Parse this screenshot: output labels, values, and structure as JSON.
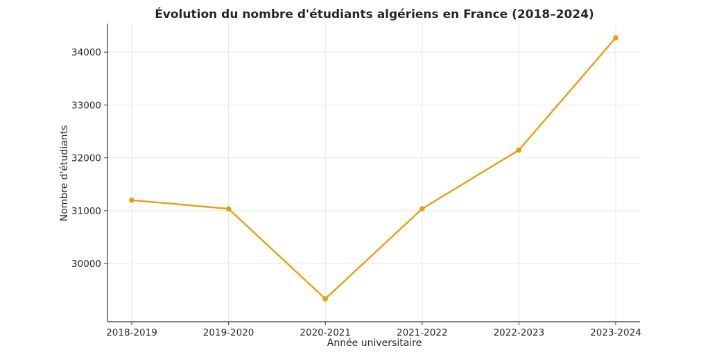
{
  "chart_data": {
    "type": "line",
    "title": "Évolution du nombre d'étudiants algériens en France (2018–2024)",
    "xlabel": "Année universitaire",
    "ylabel": "Nombre d'étudiants",
    "categories": [
      "2018-2019",
      "2019-2020",
      "2020-2021",
      "2021-2022",
      "2022-2023",
      "2023-2024"
    ],
    "series": [
      {
        "values": [
          31200,
          31036,
          29333,
          31036,
          32147,
          34270
        ]
      }
    ],
    "yticks": [
      30000,
      31000,
      32000,
      33000,
      34000
    ],
    "ylim": [
      28900,
      34540
    ],
    "grid": true,
    "colors": {
      "line": "#E5A00D",
      "marker": "#E5A00D"
    }
  }
}
